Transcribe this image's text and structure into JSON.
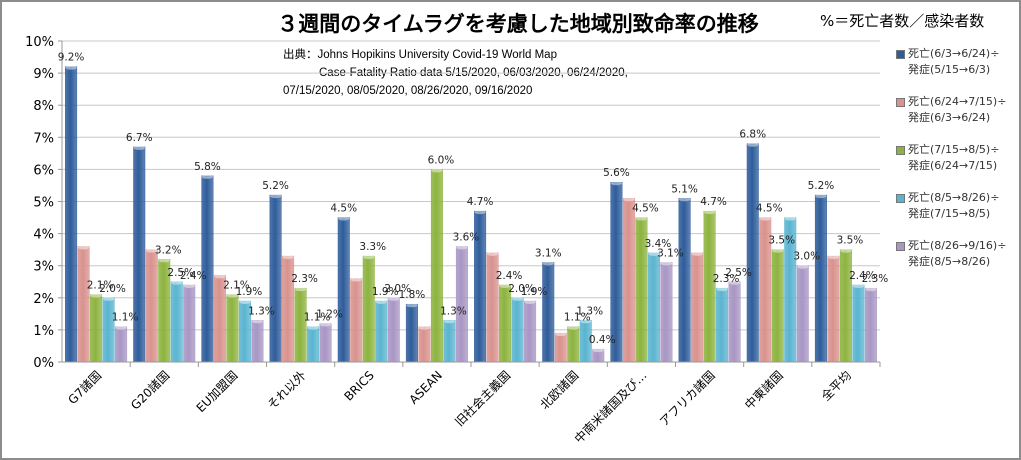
{
  "chart_data": {
    "type": "bar",
    "title": "３週間のタイムラグを考慮した地域別致命率の推移",
    "annotation_formula": "%＝死亡者数／感染者数",
    "source_lines": [
      "出典：Johns Hopikins University   Covid-19 World Map",
      "Case-Fatality Ratio data   5/15/2020, 06/03/2020, 06/24/2020,",
      "07/15/2020, 08/05/2020, 08/26/2020, 09/16/2020"
    ],
    "xlabel": "",
    "ylabel": "",
    "ylim": [
      0,
      10
    ],
    "yticks": [
      "0%",
      "1%",
      "2%",
      "3%",
      "4%",
      "5%",
      "6%",
      "7%",
      "8%",
      "9%",
      "10%"
    ],
    "grid": true,
    "legend_position": "right",
    "categories": [
      "G7諸国",
      "G20諸国",
      "EU加盟国",
      "それ以外",
      "BRICS",
      "ASEAN",
      "旧社会主義国",
      "北欧諸国",
      "中南米諸国及び…",
      "アフリカ諸国",
      "中東諸国",
      "全平均"
    ],
    "series": [
      {
        "name": "死亡(6/3→6/24)÷ 発症(5/15→6/3)",
        "line1": "死亡(6/3→6/24)÷",
        "line2": "発症(5/15→6/3)",
        "color": "#2f5d9b",
        "values": [
          9.2,
          6.7,
          5.8,
          5.2,
          4.5,
          1.8,
          4.7,
          3.1,
          5.6,
          5.1,
          6.8,
          5.2
        ]
      },
      {
        "name": "死亡(6/24→7/15)÷ 発症(6/3→6/24)",
        "line1": "死亡(6/24→7/15)÷",
        "line2": "発症(6/3→6/24)",
        "color": "#d9928e",
        "values": [
          3.6,
          3.5,
          2.7,
          3.3,
          2.6,
          1.1,
          3.4,
          0.9,
          5.1,
          3.4,
          4.5,
          3.3
        ]
      },
      {
        "name": "死亡(7/15→8/5)÷ 発症(6/24→7/15)",
        "line1": "死亡(7/15→8/5)÷",
        "line2": "発症(6/24→7/15)",
        "color": "#8db33f",
        "values": [
          2.1,
          3.2,
          2.1,
          2.3,
          3.3,
          6.0,
          2.4,
          1.1,
          4.5,
          4.7,
          3.5,
          3.5
        ]
      },
      {
        "name": "死亡(8/5→8/26)÷ 発症(7/15→8/5)",
        "line1": "死亡(8/5→8/26)÷",
        "line2": "発症(7/15→8/5)",
        "color": "#5ab4d0",
        "values": [
          2.0,
          2.5,
          1.9,
          1.1,
          1.9,
          1.3,
          2.0,
          1.3,
          3.4,
          2.3,
          4.5,
          2.4
        ]
      },
      {
        "name": "死亡(8/26→9/16)÷ 発症(8/5→8/26)",
        "line1": "死亡(8/26→9/16)÷",
        "line2": "発症(8/5→8/26)",
        "color": "#a896c4",
        "values": [
          1.1,
          2.4,
          1.3,
          1.2,
          2.0,
          3.6,
          1.9,
          0.4,
          3.1,
          2.5,
          3.0,
          2.3
        ]
      }
    ],
    "data_labels": [
      {
        "category": "G7諸国",
        "labels": [
          "9.2%",
          "2.1%",
          "2.0%",
          "1.1%"
        ]
      },
      {
        "category": "G20諸国",
        "labels": [
          "6.7%",
          "3.2%",
          "2.5%",
          "2.4%"
        ]
      },
      {
        "category": "EU加盟国",
        "labels": [
          "5.8%",
          "2.1%",
          "1.9%",
          "1.3%"
        ]
      },
      {
        "category": "それ以外",
        "labels": [
          "5.2%",
          "2.3%",
          "1.1%",
          "1.2%"
        ]
      },
      {
        "category": "BRICS",
        "labels": [
          "4.5%",
          "3.3%",
          "1.9%",
          "2.0%"
        ]
      },
      {
        "category": "ASEAN",
        "labels": [
          "1.8%",
          "6.0%",
          "1.3%",
          "3.6%"
        ]
      },
      {
        "category": "旧社会主義国",
        "labels": [
          "4.7%",
          "2.4%",
          "2.0%",
          "1.9%"
        ]
      },
      {
        "category": "北欧諸国",
        "labels": [
          "3.1%",
          "1.1%",
          "1.3%",
          "0.4%"
        ]
      },
      {
        "category": "中南米諸国及び…",
        "labels": [
          "5.6%",
          "4.5%",
          "3.4%",
          "3.1%"
        ]
      },
      {
        "category": "アフリカ諸国",
        "labels": [
          "5.1%",
          "4.7%",
          "2.3%",
          "2.5%"
        ]
      },
      {
        "category": "中東諸国",
        "labels": [
          "6.8%",
          "4.5%",
          "3.5%",
          "3.0%"
        ]
      },
      {
        "category": "全平均",
        "labels": [
          "5.2%",
          "3.5%",
          "2.4%",
          "2.3%"
        ]
      }
    ]
  }
}
